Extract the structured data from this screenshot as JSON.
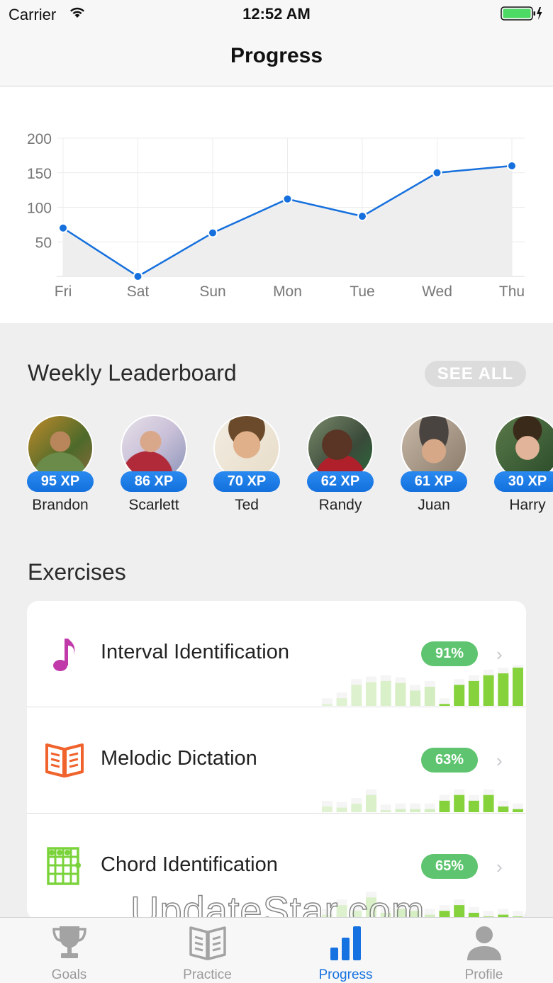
{
  "status_bar": {
    "carrier": "Carrier",
    "time": "12:52 AM"
  },
  "nav": {
    "title": "Progress"
  },
  "chart_data": {
    "type": "line",
    "categories": [
      "Fri",
      "Sat",
      "Sun",
      "Mon",
      "Tue",
      "Wed",
      "Thu"
    ],
    "series": [
      {
        "values": [
          70,
          0,
          63,
          112,
          87,
          150,
          160
        ]
      }
    ],
    "yticks": [
      50,
      100,
      150,
      200
    ],
    "ylim": [
      0,
      200
    ],
    "grid": true,
    "line_color": "#1570dd",
    "fill_color": "#eeeeee"
  },
  "leaderboard": {
    "title": "Weekly Leaderboard",
    "see_all": "SEE ALL",
    "users": [
      {
        "xp": "95 XP",
        "name": "Brandon"
      },
      {
        "xp": "86 XP",
        "name": "Scarlett"
      },
      {
        "xp": "70 XP",
        "name": "Ted"
      },
      {
        "xp": "62 XP",
        "name": "Randy"
      },
      {
        "xp": "61 XP",
        "name": "Juan"
      },
      {
        "xp": "30 XP",
        "name": "Harry"
      }
    ]
  },
  "exercises": {
    "title": "Exercises",
    "items": [
      {
        "name": "Interval Identification",
        "percent": "91%",
        "icon": "music-note-icon",
        "icon_color": "#c03aaa",
        "bars": [
          0.05,
          0.2,
          0.55,
          0.62,
          0.65,
          0.6,
          0.4,
          0.5,
          0.05,
          0.55,
          0.65,
          0.8,
          0.85,
          1.0
        ]
      },
      {
        "name": "Melodic Dictation",
        "percent": "63%",
        "icon": "book-icon",
        "icon_color": "#f0632d",
        "bars": [
          0.05,
          0.15,
          0.12,
          0.22,
          0.45,
          0.05,
          0.08,
          0.08,
          0.08,
          0.3,
          0.45,
          0.3,
          0.45,
          0.15,
          0.08
        ]
      },
      {
        "name": "Chord Identification",
        "percent": "65%",
        "icon": "chord-chart-icon",
        "icon_color": "#7bd33c",
        "bars": [
          0.05,
          0.1,
          0.35,
          0.2,
          0.55,
          0.15,
          0.25,
          0.2,
          0.1,
          0.2,
          0.35,
          0.15,
          0.05,
          0.1,
          0.05
        ]
      }
    ]
  },
  "tabs": [
    {
      "label": "Goals",
      "icon": "trophy-icon"
    },
    {
      "label": "Practice",
      "icon": "book-icon"
    },
    {
      "label": "Progress",
      "icon": "bar-chart-icon"
    },
    {
      "label": "Profile",
      "icon": "person-icon"
    }
  ],
  "watermark": "UpdateStar.com"
}
